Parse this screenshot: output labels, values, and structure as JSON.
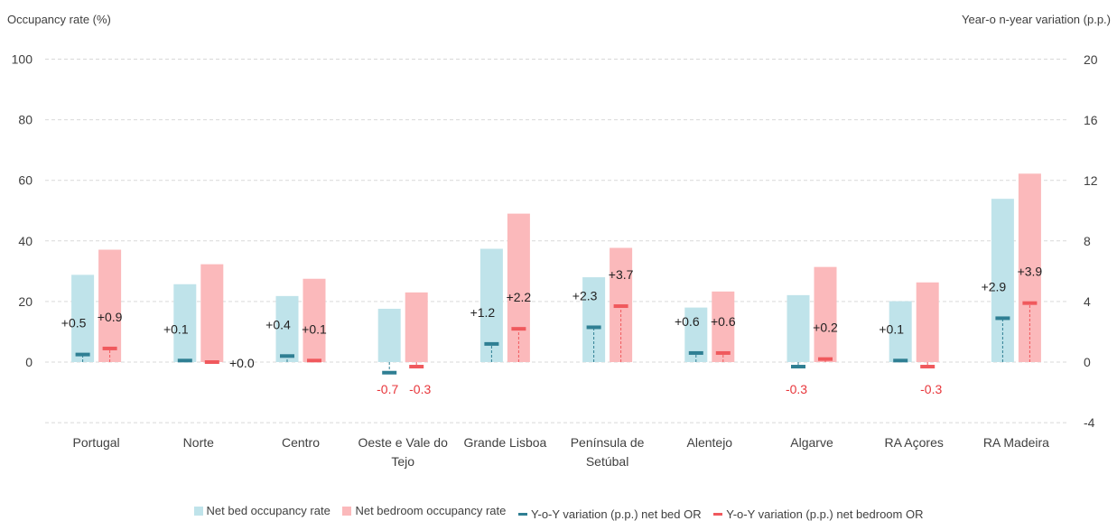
{
  "chart_data": {
    "type": "bar",
    "left_axis_label": "Occupancy rate (%)",
    "right_axis_label": "Year-o n-year variation (p.p.)",
    "left_ylim": [
      -20,
      100
    ],
    "left_ticks": [
      0,
      20,
      40,
      60,
      80,
      100
    ],
    "right_ylim": [
      -4,
      20
    ],
    "right_ticks": [
      -4,
      0,
      4,
      8,
      12,
      16,
      20
    ],
    "grid": true,
    "legend_position": "bottom",
    "categories": [
      [
        "Portugal"
      ],
      [
        "Norte"
      ],
      [
        "Centro"
      ],
      [
        "Oeste e Vale do",
        "Tejo"
      ],
      [
        "Grande Lisboa"
      ],
      [
        "Península de",
        "Setúbal"
      ],
      [
        "Alentejo"
      ],
      [
        "Algarve"
      ],
      [
        "RA Açores"
      ],
      [
        "RA Madeira"
      ]
    ],
    "series": [
      {
        "name": "Net bed occupancy rate",
        "axis": "left",
        "kind": "bar",
        "color": "#bfe3ea",
        "values": [
          28.8,
          25.7,
          21.8,
          17.6,
          37.4,
          28.0,
          18.0,
          22.1,
          20.1,
          53.9
        ]
      },
      {
        "name": "Net bedroom occupancy rate",
        "axis": "left",
        "kind": "bar",
        "color": "#fbb9bb",
        "values": [
          37.1,
          32.3,
          27.5,
          23.0,
          49.0,
          37.7,
          23.3,
          31.4,
          26.3,
          62.2
        ]
      },
      {
        "name": "Y-o-Y variation (p.p.) net bed OR",
        "axis": "right",
        "kind": "marker",
        "color": "#2f7f93",
        "values": [
          0.5,
          0.1,
          0.4,
          -0.7,
          1.2,
          2.3,
          0.6,
          -0.3,
          0.1,
          2.9
        ],
        "labels": [
          "+0.5",
          "+0.1",
          "+0.4",
          "-0.7",
          "+1.2",
          "+2.3",
          "+0.6",
          "-0.3",
          "+0.1",
          "+2.9"
        ]
      },
      {
        "name": "Y-o-Y variation (p.p.) net bedroom OR",
        "axis": "right",
        "kind": "marker",
        "color": "#f0595d",
        "values": [
          0.9,
          0.0,
          0.1,
          -0.3,
          2.2,
          3.7,
          0.6,
          0.2,
          -0.3,
          3.9
        ],
        "labels": [
          "+0.9",
          "+0.0",
          "+0.1",
          "-0.3",
          "+2.2",
          "+3.7",
          "+0.6",
          "+0.2",
          "-0.3",
          "+3.9"
        ]
      }
    ],
    "negative_label_color": "#e8363b"
  }
}
